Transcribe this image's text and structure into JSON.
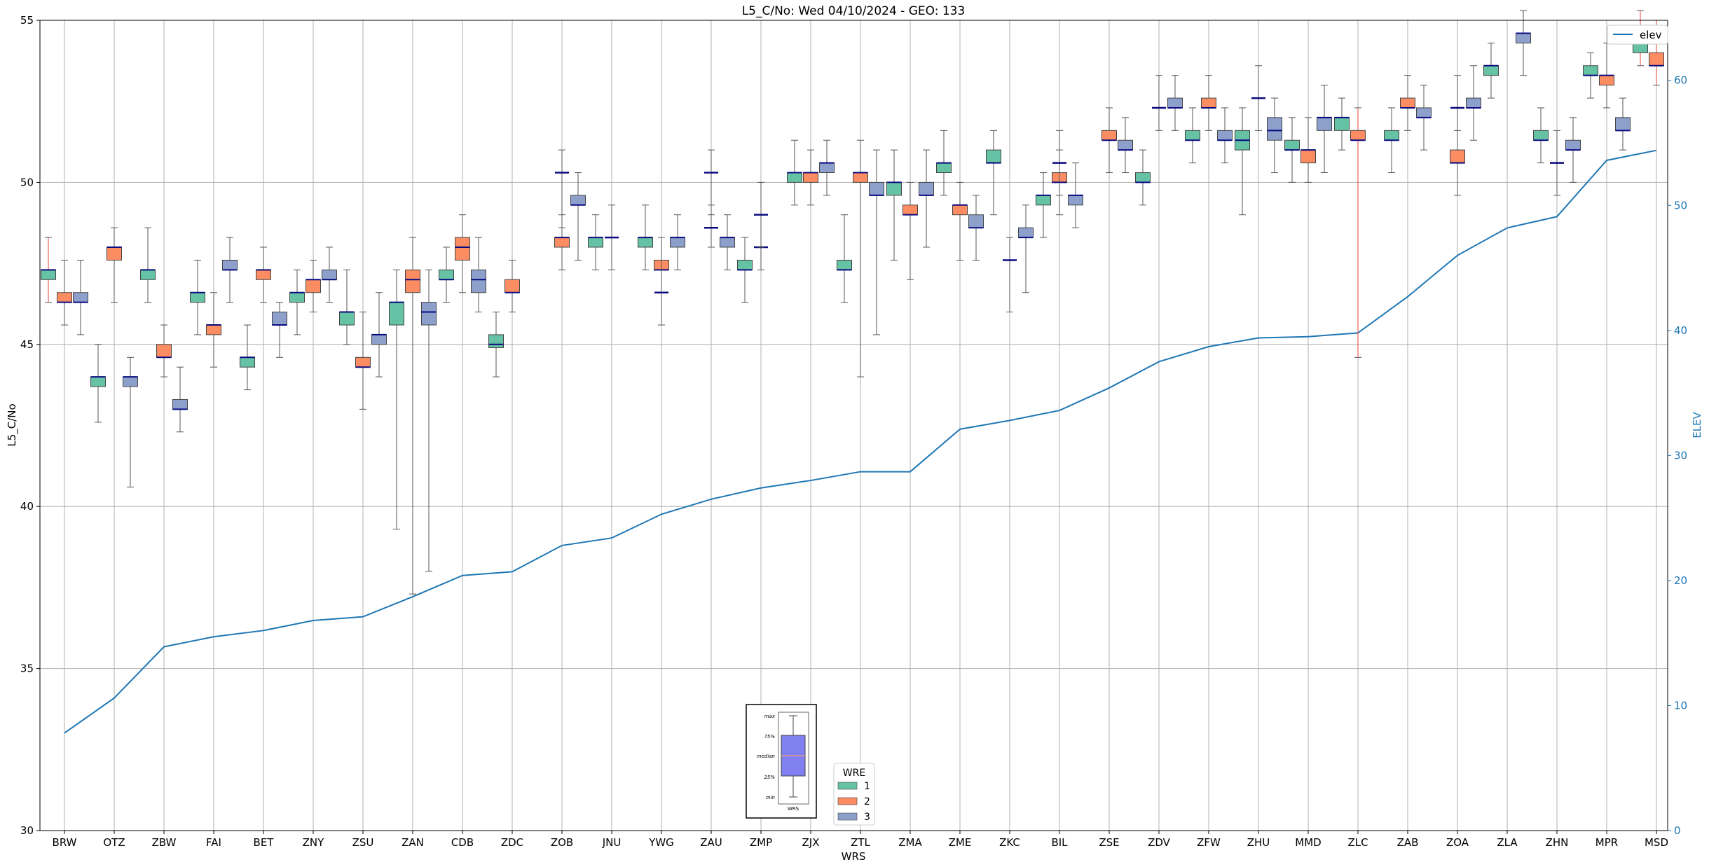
{
  "chart_data": {
    "type": "box",
    "title": "L5_C/No: Wed 04/10/2024 - GEO: 133",
    "xlabel": "WRS",
    "ylabel": "L5_C/No",
    "y2label": "ELEV",
    "ylim": [
      30,
      55
    ],
    "y2lim": [
      0,
      64.8
    ],
    "yticks": [
      "30",
      "35",
      "40",
      "45",
      "50",
      "55"
    ],
    "y2ticks": [
      "0",
      "10",
      "20",
      "30",
      "40",
      "50",
      "60"
    ],
    "grid": true,
    "categories": [
      "BRW",
      "OTZ",
      "ZBW",
      "FAI",
      "BET",
      "ZNY",
      "ZSU",
      "ZAN",
      "CDB",
      "ZDC",
      "ZOB",
      "JNU",
      "YWG",
      "ZAU",
      "ZMP",
      "ZJX",
      "ZTL",
      "ZMA",
      "ZME",
      "ZKC",
      "BIL",
      "ZSE",
      "ZDV",
      "ZFW",
      "ZHU",
      "MMD",
      "ZLC",
      "ZAB",
      "ZOA",
      "ZLA",
      "ZHN",
      "MPR",
      "MSD"
    ],
    "series": [
      {
        "name": "1",
        "color": "#66c2a5",
        "values": [
          [
            46.3,
            47.0,
            47.3,
            47.3,
            48.3
          ],
          [
            42.6,
            43.7,
            44.0,
            44.0,
            45.0
          ],
          [
            46.3,
            47.0,
            47.3,
            47.3,
            48.6
          ],
          [
            45.3,
            46.3,
            46.6,
            46.6,
            47.6
          ],
          [
            43.6,
            44.3,
            44.6,
            44.6,
            45.6
          ],
          [
            45.3,
            46.3,
            46.6,
            46.6,
            47.3
          ],
          [
            45.0,
            45.6,
            46.0,
            46.0,
            47.3
          ],
          [
            39.3,
            45.6,
            46.3,
            46.3,
            47.3
          ],
          [
            46.3,
            47.0,
            47.0,
            47.3,
            48.0
          ],
          [
            44.0,
            44.9,
            45.0,
            45.3,
            46.0
          ],
          null,
          [
            47.3,
            48.0,
            48.3,
            48.3,
            49.0
          ],
          [
            47.3,
            48.0,
            48.3,
            48.3,
            49.3
          ],
          null,
          [
            46.3,
            47.3,
            47.3,
            47.6,
            48.3
          ],
          [
            49.3,
            50.0,
            50.3,
            50.3,
            51.3
          ],
          [
            46.3,
            47.3,
            47.3,
            47.6,
            49.0
          ],
          [
            47.6,
            49.6,
            50.0,
            50.0,
            51.0
          ],
          [
            49.6,
            50.3,
            50.6,
            50.6,
            51.6
          ],
          [
            49.0,
            50.6,
            50.6,
            51.0,
            51.6
          ],
          [
            48.3,
            49.3,
            49.6,
            49.6,
            50.3
          ],
          null,
          [
            49.3,
            50.0,
            50.0,
            50.3,
            51.0
          ],
          [
            50.6,
            51.3,
            51.3,
            51.6,
            52.3
          ],
          [
            49.0,
            51.0,
            51.3,
            51.6,
            52.3
          ],
          [
            50.0,
            51.0,
            51.0,
            51.3,
            52.0
          ],
          [
            51.0,
            51.6,
            52.0,
            52.0,
            52.6
          ],
          [
            50.3,
            51.3,
            51.3,
            51.6,
            52.3
          ],
          null,
          [
            52.6,
            53.3,
            53.6,
            53.6,
            54.3
          ],
          [
            50.6,
            51.3,
            51.3,
            51.6,
            52.3
          ],
          [
            52.6,
            53.3,
            53.3,
            53.6,
            54.0
          ],
          [
            53.6,
            54.0,
            54.3,
            54.3,
            55.3
          ]
        ]
      },
      {
        "name": "2",
        "color": "#fc8d62",
        "values": [
          [
            45.6,
            46.3,
            46.3,
            46.6,
            47.6
          ],
          [
            46.3,
            47.6,
            48.0,
            48.0,
            48.6
          ],
          [
            44.0,
            44.6,
            44.6,
            45.0,
            45.6
          ],
          [
            44.3,
            45.3,
            45.6,
            45.6,
            46.6
          ],
          [
            46.3,
            47.0,
            47.3,
            47.3,
            48.0
          ],
          [
            46.0,
            46.6,
            47.0,
            47.0,
            47.6
          ],
          [
            43.0,
            44.3,
            44.3,
            44.6,
            46.0
          ],
          [
            37.3,
            46.6,
            47.0,
            47.3,
            48.3
          ],
          [
            46.6,
            47.6,
            48.0,
            48.3,
            49.0
          ],
          [
            46.0,
            46.6,
            46.6,
            47.0,
            47.6
          ],
          [
            47.3,
            48.0,
            48.3,
            48.3,
            49.0
          ],
          null,
          [
            46.6,
            47.3,
            47.3,
            47.6,
            48.3
          ],
          null,
          null,
          [
            49.3,
            50.0,
            50.3,
            50.3,
            51.0
          ],
          [
            44.0,
            50.0,
            50.3,
            50.3,
            51.3
          ],
          [
            47.0,
            49.0,
            49.0,
            49.3,
            50.0
          ],
          [
            47.6,
            49.0,
            49.3,
            49.3,
            50.0
          ],
          null,
          [
            49.0,
            50.0,
            50.0,
            50.3,
            51.0
          ],
          [
            50.3,
            51.3,
            51.3,
            51.6,
            52.3
          ],
          null,
          [
            51.6,
            52.3,
            52.3,
            52.6,
            53.3
          ],
          null,
          [
            50.0,
            50.6,
            51.0,
            51.0,
            52.0
          ],
          [
            44.6,
            51.3,
            51.3,
            51.6,
            52.3
          ],
          [
            51.6,
            52.3,
            52.3,
            52.6,
            53.3
          ],
          [
            49.6,
            50.6,
            50.6,
            51.0,
            51.6
          ],
          null,
          null,
          [
            52.3,
            53.0,
            53.3,
            53.3,
            54.3
          ],
          [
            53.0,
            53.6,
            53.6,
            54.0,
            55.0
          ]
        ]
      },
      {
        "name": "3",
        "color": "#8da0cb",
        "values": [
          [
            45.3,
            46.3,
            46.3,
            46.6,
            47.6
          ],
          [
            40.6,
            43.7,
            44.0,
            44.0,
            44.6
          ],
          [
            42.3,
            43.0,
            43.0,
            43.3,
            44.3
          ],
          [
            46.3,
            47.3,
            47.3,
            47.6,
            48.3
          ],
          [
            44.6,
            45.6,
            45.6,
            46.0,
            46.3
          ],
          [
            46.3,
            47.0,
            47.0,
            47.3,
            48.0
          ],
          [
            44.0,
            45.0,
            45.3,
            45.3,
            46.6
          ],
          [
            38.0,
            45.6,
            46.0,
            46.3,
            47.3
          ],
          [
            46.0,
            46.6,
            47.0,
            47.3,
            48.3
          ],
          null,
          [
            47.6,
            49.3,
            49.3,
            49.6,
            50.3
          ],
          null,
          [
            47.3,
            48.0,
            48.3,
            48.3,
            49.0
          ],
          [
            47.3,
            48.0,
            48.3,
            48.3,
            49.0
          ],
          null,
          [
            49.6,
            50.3,
            50.6,
            50.6,
            51.3
          ],
          [
            45.3,
            49.6,
            49.6,
            50.0,
            51.0
          ],
          [
            48.0,
            49.6,
            49.6,
            50.0,
            51.0
          ],
          [
            47.6,
            48.6,
            48.6,
            49.0,
            49.6
          ],
          [
            46.6,
            48.3,
            48.3,
            48.6,
            49.3
          ],
          [
            48.6,
            49.3,
            49.6,
            49.6,
            50.6
          ],
          [
            50.3,
            51.0,
            51.0,
            51.3,
            52.0
          ],
          [
            51.6,
            52.3,
            52.3,
            52.6,
            53.3
          ],
          [
            50.6,
            51.3,
            51.3,
            51.6,
            52.3
          ],
          [
            50.3,
            51.3,
            51.6,
            52.0,
            52.6
          ],
          [
            50.3,
            51.6,
            52.0,
            52.0,
            53.0
          ],
          null,
          [
            51.0,
            52.0,
            52.0,
            52.3,
            53.0
          ],
          [
            51.3,
            52.3,
            52.3,
            52.6,
            53.6
          ],
          [
            53.3,
            54.3,
            54.6,
            54.6,
            55.3
          ],
          [
            50.0,
            51.0,
            51.0,
            51.3,
            52.0
          ],
          [
            51.0,
            51.6,
            51.6,
            52.0,
            52.6
          ],
          null
        ]
      }
    ],
    "singles": [
      {
        "category": "ZOB",
        "value": 50.3,
        "hi": 51.0,
        "lo": 48.6
      },
      {
        "category": "JNU",
        "value": 48.3,
        "hi": 49.3,
        "lo": 47.3
      },
      {
        "category": "YWG",
        "value": 46.6,
        "hi": 47.6,
        "lo": 45.6
      },
      {
        "category": "ZAU",
        "value": 48.6,
        "hi": 49.3,
        "lo": 48.0
      },
      {
        "category": "ZAU",
        "value": 50.3,
        "hi": 51.0,
        "lo": 49.0
      },
      {
        "category": "ZMP",
        "value": 48.0,
        "hi": 49.0,
        "lo": 47.3
      },
      {
        "category": "ZMP",
        "value": 49.0,
        "hi": 50.0,
        "lo": 48.0
      },
      {
        "category": "ZKC",
        "value": 47.6,
        "hi": 48.3,
        "lo": 46.0
      },
      {
        "category": "BIL",
        "value": 50.6,
        "hi": 51.6,
        "lo": 49.6
      },
      {
        "category": "ZDV",
        "value": 52.3,
        "hi": 53.3,
        "lo": 51.6
      },
      {
        "category": "ZHU",
        "value": 52.6,
        "hi": 53.6,
        "lo": 51.6
      },
      {
        "category": "ZOA",
        "value": 52.3,
        "hi": 53.3,
        "lo": 51.0
      },
      {
        "category": "ZHN",
        "value": 50.6,
        "hi": 51.6,
        "lo": 49.6
      }
    ],
    "elev": {
      "name": "elev",
      "color": "#1f77b4",
      "values": [
        7.8,
        10.6,
        14.7,
        15.5,
        16.0,
        16.8,
        17.1,
        18.7,
        20.4,
        20.7,
        22.8,
        23.4,
        25.3,
        26.5,
        27.4,
        28.0,
        28.7,
        28.7,
        32.1,
        32.8,
        33.6,
        35.4,
        37.5,
        38.7,
        39.4,
        39.5,
        39.8,
        42.7,
        46.0,
        48.2,
        49.1,
        53.6,
        54.4
      ]
    },
    "legend": {
      "title": "WRE",
      "entries": [
        "1",
        "2",
        "3"
      ],
      "position": "lower center"
    },
    "legend_elev": {
      "entries": [
        "elev"
      ],
      "position": "upper right"
    },
    "key_box": {
      "labels": [
        "max",
        "75%",
        "median",
        "25%",
        "min"
      ],
      "xlabel": "WRS"
    }
  }
}
